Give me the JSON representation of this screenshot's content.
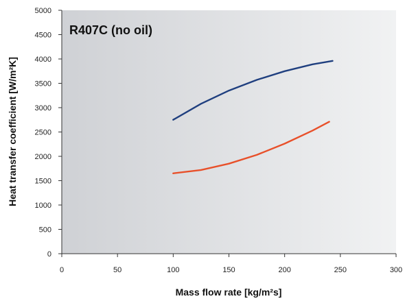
{
  "chart_data": {
    "type": "line",
    "title": "R407C (no oil)",
    "xlabel": "Mass flow rate [kg/m²s]",
    "ylabel": "Heat transfer coefficient [W/m²K]",
    "xlim": [
      0,
      300
    ],
    "ylim": [
      0,
      5000
    ],
    "x_ticks": [
      0,
      50,
      100,
      150,
      200,
      250,
      300
    ],
    "y_ticks": [
      0,
      500,
      1000,
      1500,
      2000,
      2500,
      3000,
      3500,
      4000,
      4500,
      5000
    ],
    "grid": false,
    "legend": "none",
    "background": "gradient-grey",
    "series": [
      {
        "color": "#1f3f7f",
        "x": [
          100,
          125,
          150,
          175,
          200,
          225,
          243
        ],
        "y": [
          2750,
          3080,
          3350,
          3570,
          3750,
          3890,
          3960
        ]
      },
      {
        "color": "#e8502a",
        "x": [
          100,
          125,
          150,
          175,
          200,
          225,
          240
        ],
        "y": [
          1650,
          1720,
          1850,
          2030,
          2260,
          2530,
          2710
        ]
      }
    ]
  }
}
